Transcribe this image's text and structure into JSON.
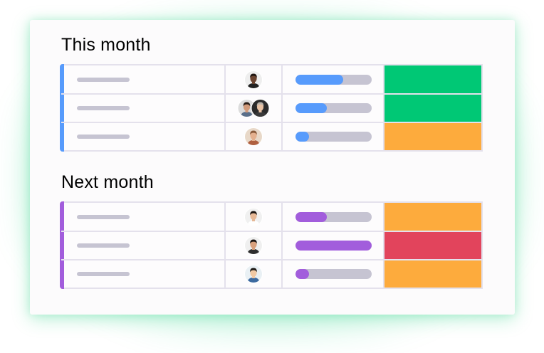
{
  "colors": {
    "blue": "#579bfc",
    "purple": "#a25ddc",
    "green": "#00c875",
    "orange": "#fdab3d",
    "red": "#e2445c",
    "track": "#c6c4d2"
  },
  "groups": [
    {
      "title": "This month",
      "color": "#579bfc",
      "rows": [
        {
          "avatars": [
            "person-dark-skin"
          ],
          "progress": 0.63,
          "status_color": "#00c875"
        },
        {
          "avatars": [
            "person-man-beard",
            "person-man-grey"
          ],
          "progress": 0.41,
          "status_color": "#00c875"
        },
        {
          "avatars": [
            "person-woman-glasses"
          ],
          "progress": 0.18,
          "status_color": "#fdab3d"
        }
      ]
    },
    {
      "title": "Next month",
      "color": "#a25ddc",
      "rows": [
        {
          "avatars": [
            "person-man-white-shirt"
          ],
          "progress": 0.41,
          "status_color": "#fdab3d"
        },
        {
          "avatars": [
            "person-woman-dark-hair"
          ],
          "progress": 1.0,
          "status_color": "#e2445c"
        },
        {
          "avatars": [
            "person-man-smiling"
          ],
          "progress": 0.18,
          "status_color": "#fdab3d"
        }
      ]
    }
  ]
}
